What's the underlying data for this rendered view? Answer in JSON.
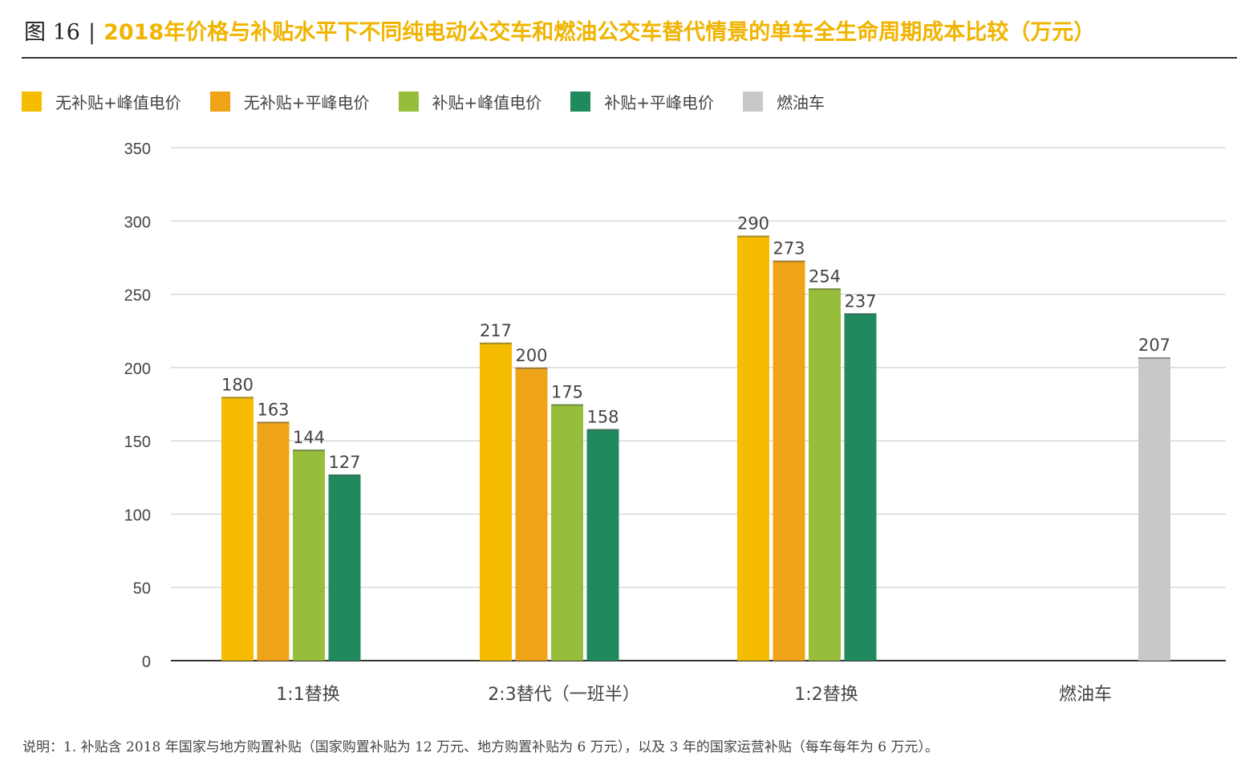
{
  "figure_label": "图 16",
  "title": "2018年价格与补贴水平下不同纯电动公交车和燃油公交车替代情景的单车全生命周期成本比较（万元）",
  "note": "说明：1. 补贴含 2018 年国家与地方购置补贴（国家购置补贴为 12 万元、地方购置补贴为 6 万元），以及 3 年的国家运营补贴（每车每年为 6 万元）。",
  "chart_data": {
    "type": "bar",
    "title": "2018年价格与补贴水平下不同纯电动公交车和燃油公交车替代情景的单车全生命周期成本比较（万元）",
    "categories": [
      "1:1替换",
      "2:3替代（一班半）",
      "1:2替换",
      "燃油车"
    ],
    "series": [
      {
        "name": "无补贴+峰值电价",
        "color": "#F5BC00",
        "values": [
          180,
          217,
          290,
          null
        ]
      },
      {
        "name": "无补贴+平峰电价",
        "color": "#EFA418",
        "values": [
          163,
          200,
          273,
          null
        ]
      },
      {
        "name": "补贴+峰值电价",
        "color": "#97BE3A",
        "values": [
          144,
          175,
          254,
          null
        ]
      },
      {
        "name": "补贴+平峰电价",
        "color": "#208A5E",
        "values": [
          127,
          158,
          237,
          null
        ]
      },
      {
        "name": "燃油车",
        "color": "#C8C8C8",
        "values": [
          null,
          null,
          null,
          207
        ]
      }
    ],
    "ylim": [
      0,
      350
    ],
    "yticks": [
      0,
      50,
      100,
      150,
      200,
      250,
      300,
      350
    ],
    "grid": true,
    "legend_position": "top-left",
    "xlabel": "",
    "ylabel": ""
  }
}
